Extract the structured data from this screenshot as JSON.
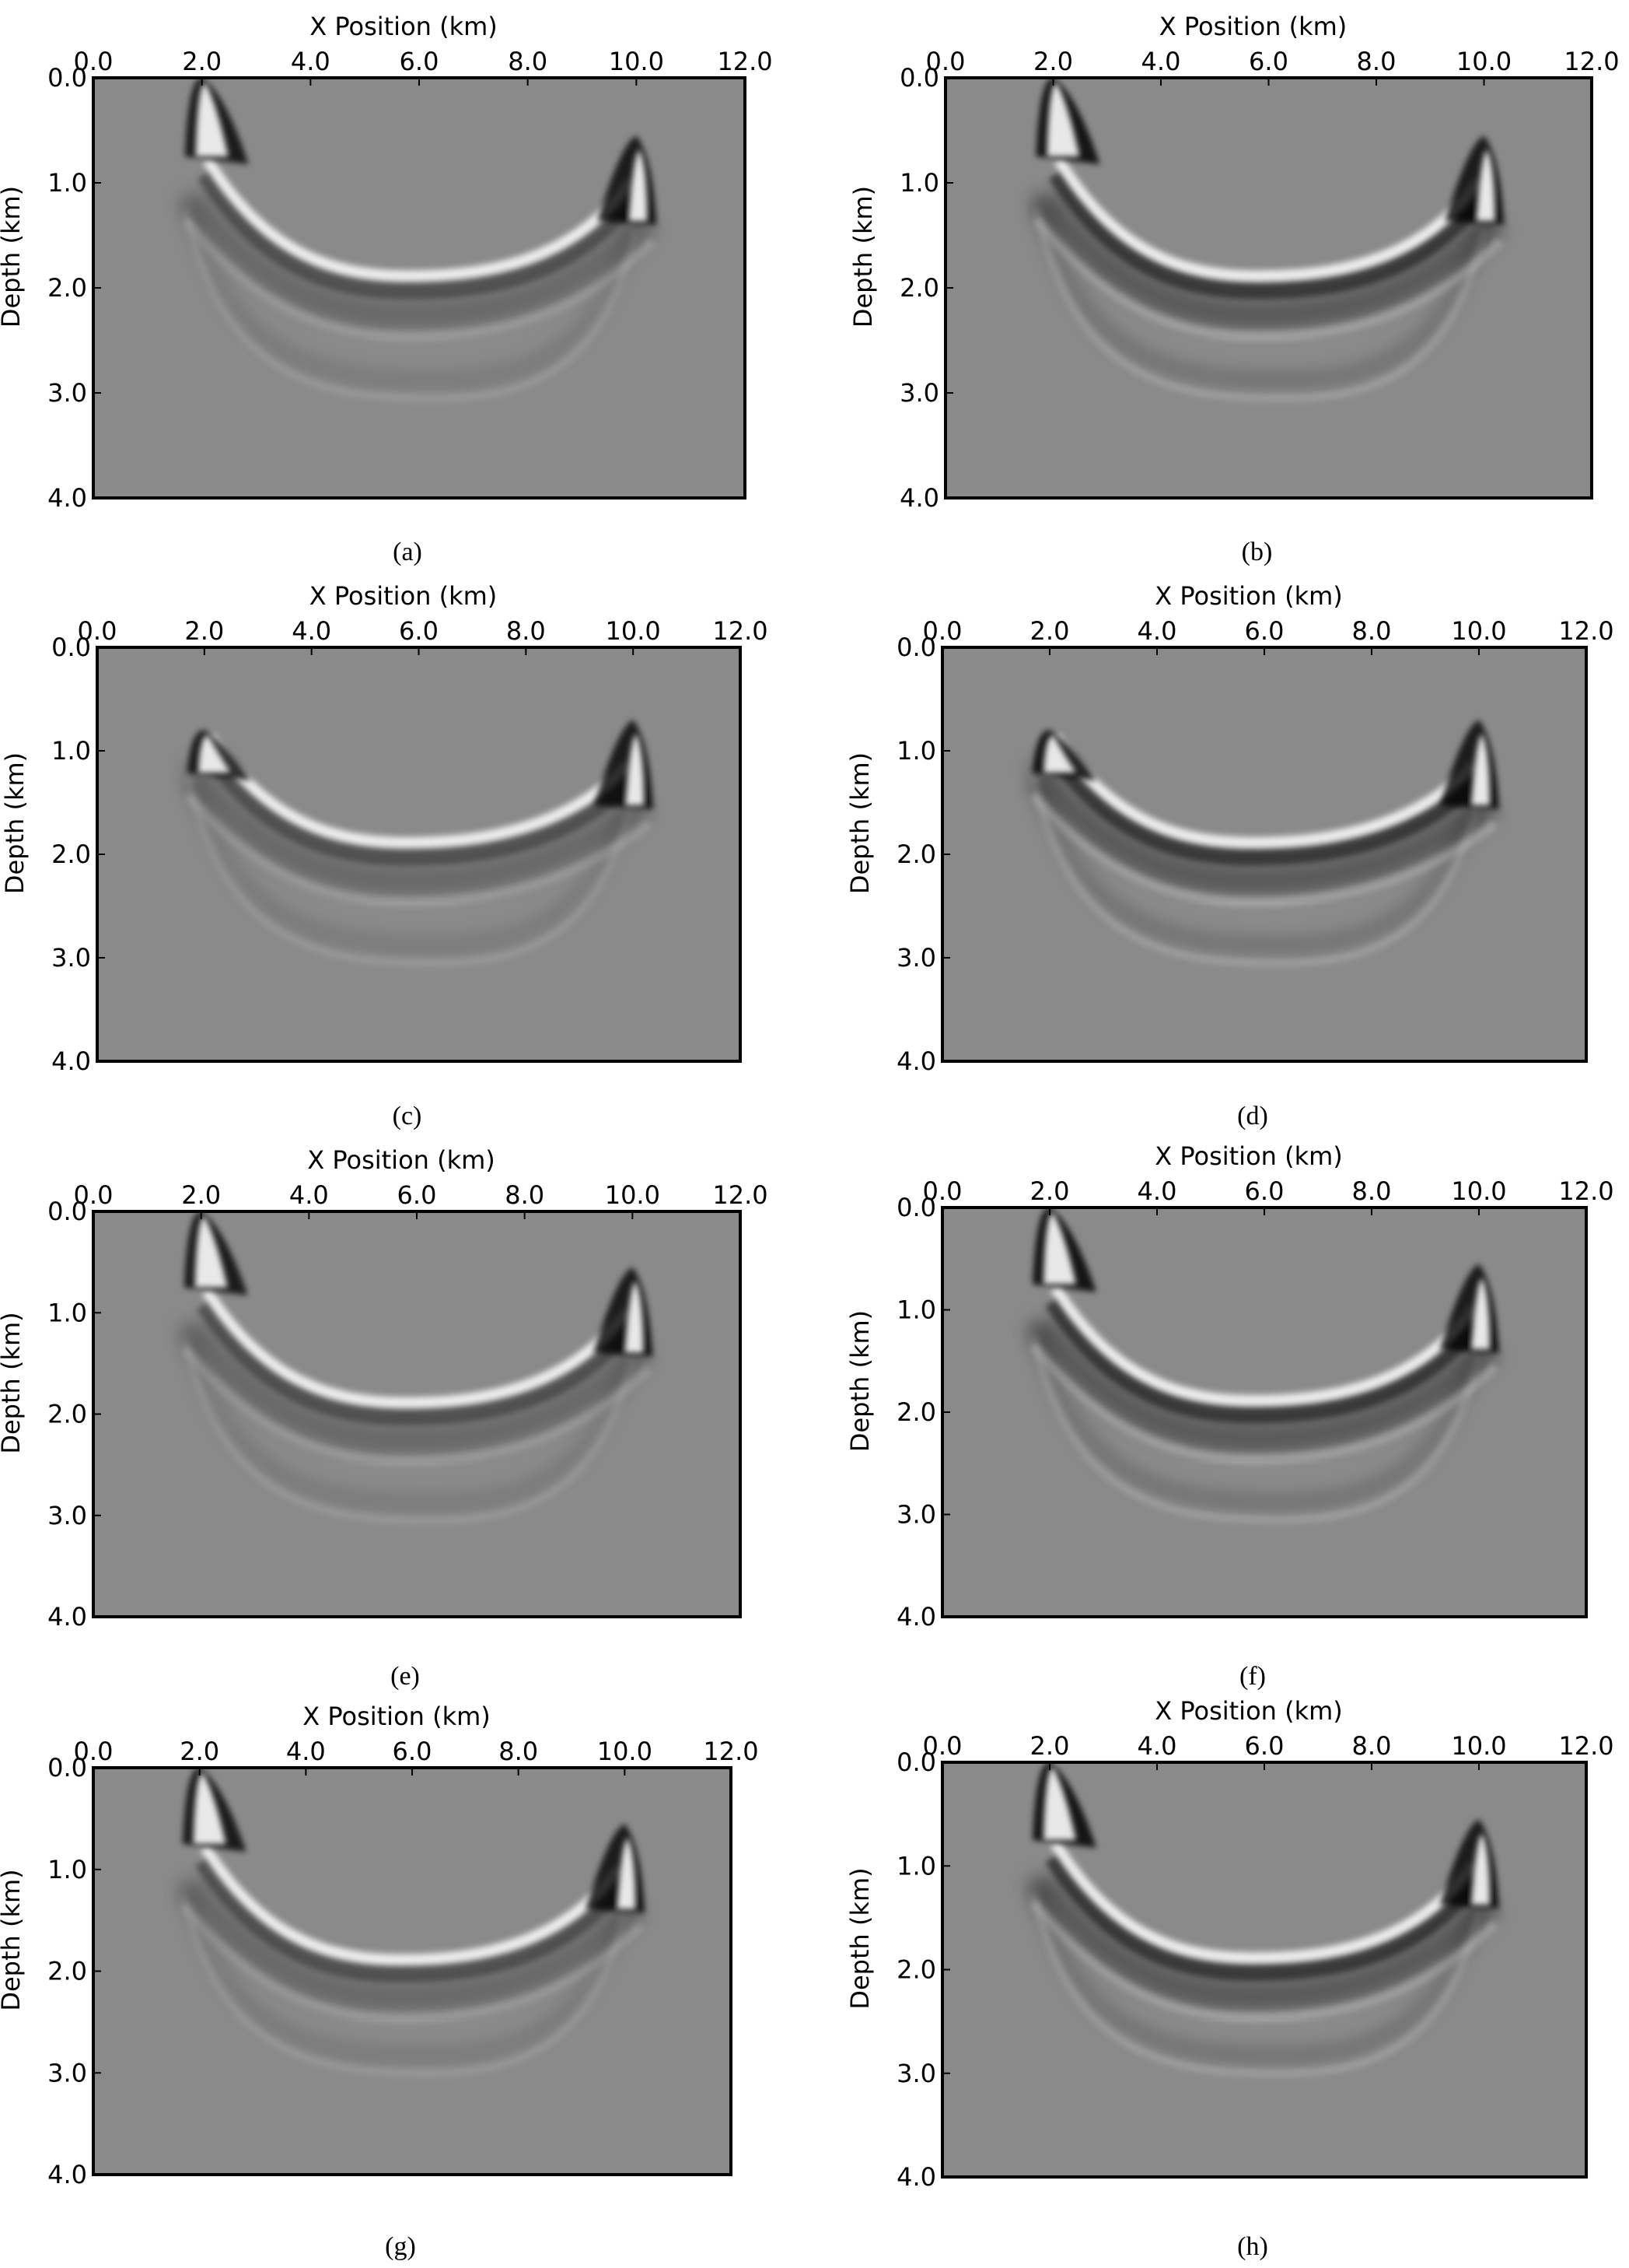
{
  "colors": {
    "background": "#8a8a8a",
    "frame": "#000000",
    "bright": "#ffffff",
    "dark": "#000000"
  },
  "chart_data": [
    {
      "panel_label": "a",
      "type": "heatmap",
      "colormap": "gray",
      "xlabel": "X Position (km)",
      "ylabel": "Depth (km)",
      "xlim": [
        0,
        12
      ],
      "ylim": [
        4,
        0
      ],
      "x_ticks": [
        "0.0",
        "2.0",
        "4.0",
        "6.0",
        "8.0",
        "10.0",
        "12.0"
      ],
      "y_ticks": [
        "0.0",
        "1.0",
        "2.0",
        "3.0",
        "4.0"
      ],
      "features": {
        "left_apex": [
          2.0,
          0.0
        ],
        "right_apex": [
          10.0,
          0.55
        ],
        "trough": [
          6.3,
          1.9
        ],
        "lower_trough": [
          6.3,
          3.0
        ]
      }
    },
    {
      "panel_label": "b",
      "type": "heatmap",
      "colormap": "gray",
      "xlabel": "X Position (km)",
      "ylabel": "Depth (km)",
      "xlim": [
        0,
        12
      ],
      "ylim": [
        4,
        0
      ],
      "x_ticks": [
        "0.0",
        "2.0",
        "4.0",
        "6.0",
        "8.0",
        "10.0",
        "12.0"
      ],
      "y_ticks": [
        "0.0",
        "1.0",
        "2.0",
        "3.0",
        "4.0"
      ],
      "features": {
        "left_apex": [
          2.0,
          0.0
        ],
        "right_apex": [
          10.0,
          0.55
        ],
        "trough": [
          6.3,
          1.9
        ],
        "lower_trough": [
          6.3,
          3.0
        ]
      }
    },
    {
      "panel_label": "c",
      "type": "heatmap",
      "colormap": "gray",
      "xlabel": "X Position (km)",
      "ylabel": "Depth (km)",
      "xlim": [
        0,
        12
      ],
      "ylim": [
        4,
        0
      ],
      "x_ticks": [
        "0.0",
        "2.0",
        "4.0",
        "6.0",
        "8.0",
        "10.0",
        "12.0"
      ],
      "y_ticks": [
        "0.0",
        "1.0",
        "2.0",
        "3.0",
        "4.0"
      ],
      "features": {
        "left_apex": [
          2.0,
          0.8
        ],
        "right_apex": [
          10.0,
          0.7
        ],
        "trough": [
          6.3,
          1.9
        ],
        "lower_trough": [
          6.3,
          3.0
        ]
      }
    },
    {
      "panel_label": "d",
      "type": "heatmap",
      "colormap": "gray",
      "xlabel": "X Position (km)",
      "ylabel": "Depth (km)",
      "xlim": [
        0,
        12
      ],
      "ylim": [
        4,
        0
      ],
      "x_ticks": [
        "0.0",
        "2.0",
        "4.0",
        "6.0",
        "8.0",
        "10.0",
        "12.0"
      ],
      "y_ticks": [
        "0.0",
        "1.0",
        "2.0",
        "3.0",
        "4.0"
      ],
      "features": {
        "left_apex": [
          2.0,
          0.8
        ],
        "right_apex": [
          10.0,
          0.7
        ],
        "trough": [
          6.3,
          1.9
        ],
        "lower_trough": [
          6.3,
          3.0
        ]
      }
    },
    {
      "panel_label": "e",
      "type": "heatmap",
      "colormap": "gray",
      "xlabel": "X Position (km)",
      "ylabel": "Depth (km)",
      "xlim": [
        0,
        12
      ],
      "ylim": [
        4,
        0
      ],
      "x_ticks": [
        "0.0",
        "2.0",
        "4.0",
        "6.0",
        "8.0",
        "10.0",
        "12.0"
      ],
      "y_ticks": [
        "0.0",
        "1.0",
        "2.0",
        "3.0",
        "4.0"
      ],
      "features": {
        "left_apex": [
          2.0,
          0.0
        ],
        "right_apex": [
          10.0,
          0.55
        ],
        "trough": [
          6.3,
          1.9
        ],
        "lower_trough": [
          6.3,
          3.0
        ]
      }
    },
    {
      "panel_label": "f",
      "type": "heatmap",
      "colormap": "gray",
      "xlabel": "X Position (km)",
      "ylabel": "Depth (km)",
      "xlim": [
        0,
        12
      ],
      "ylim": [
        4,
        0
      ],
      "x_ticks": [
        "0.0",
        "2.0",
        "4.0",
        "6.0",
        "8.0",
        "10.0",
        "12.0"
      ],
      "y_ticks": [
        "0.0",
        "1.0",
        "2.0",
        "3.0",
        "4.0"
      ],
      "features": {
        "left_apex": [
          2.0,
          0.0
        ],
        "right_apex": [
          10.0,
          0.55
        ],
        "trough": [
          6.3,
          1.9
        ],
        "lower_trough": [
          6.3,
          3.0
        ]
      }
    },
    {
      "panel_label": "g",
      "type": "heatmap",
      "colormap": "gray",
      "xlabel": "X Position (km)",
      "ylabel": "Depth (km)",
      "xlim": [
        0,
        12
      ],
      "ylim": [
        4,
        0
      ],
      "x_ticks": [
        "0.0",
        "2.0",
        "4.0",
        "6.0",
        "8.0",
        "10.0",
        "12.0"
      ],
      "y_ticks": [
        "0.0",
        "1.0",
        "2.0",
        "3.0",
        "4.0"
      ],
      "features": {
        "left_apex": [
          2.0,
          0.0
        ],
        "right_apex": [
          10.0,
          0.55
        ],
        "trough": [
          6.3,
          1.9
        ],
        "lower_trough": [
          6.3,
          2.95
        ]
      }
    },
    {
      "panel_label": "h",
      "type": "heatmap",
      "colormap": "gray",
      "xlabel": "X Position (km)",
      "ylabel": "Depth (km)",
      "xlim": [
        0,
        12
      ],
      "ylim": [
        4,
        0
      ],
      "x_ticks": [
        "0.0",
        "2.0",
        "4.0",
        "6.0",
        "8.0",
        "10.0",
        "12.0"
      ],
      "y_ticks": [
        "0.0",
        "1.0",
        "2.0",
        "3.0",
        "4.0"
      ],
      "features": {
        "left_apex": [
          2.0,
          0.0
        ],
        "right_apex": [
          10.0,
          0.55
        ],
        "trough": [
          6.3,
          1.9
        ],
        "lower_trough": [
          6.3,
          2.95
        ]
      }
    }
  ],
  "captions": [
    "(a)",
    "(b)",
    "(c)",
    "(d)",
    "(e)",
    "(f)",
    "(g)",
    "(h)"
  ]
}
